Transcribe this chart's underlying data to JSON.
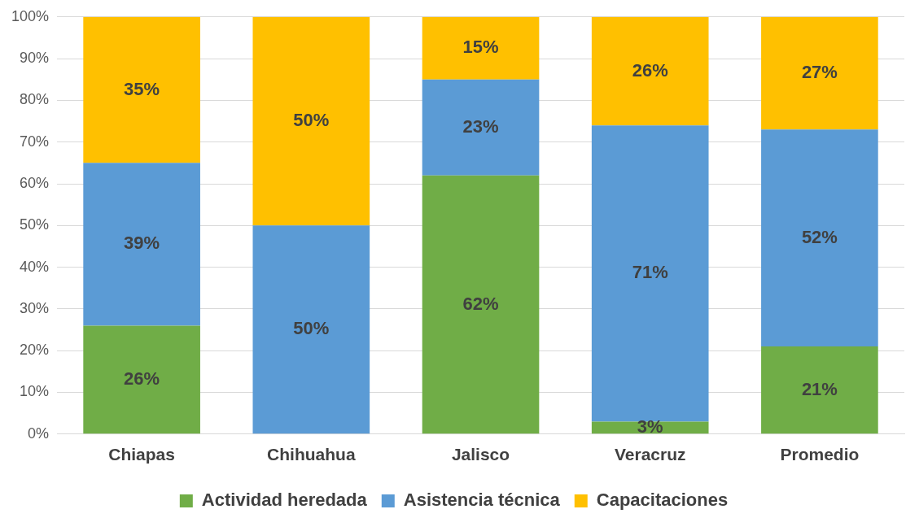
{
  "chart_data": {
    "type": "bar",
    "stacked": true,
    "categories": [
      "Chiapas",
      "Chihuahua",
      "Jalisco",
      "Veracruz",
      "Promedio"
    ],
    "series": [
      {
        "name": "Actividad heredada",
        "color": "#70ad47",
        "values": [
          26,
          0,
          62,
          3,
          21
        ],
        "value_labels": [
          "26%",
          null,
          "62%",
          "3%",
          "21%"
        ]
      },
      {
        "name": "Asistencia técnica",
        "color": "#5b9bd5",
        "values": [
          39,
          50,
          23,
          71,
          52
        ],
        "value_labels": [
          "39%",
          "50%",
          "23%",
          "71%",
          "52%"
        ]
      },
      {
        "name": "Capacitaciones",
        "color": "#ffc000",
        "values": [
          35,
          50,
          15,
          26,
          27
        ],
        "value_labels": [
          "35%",
          "50%",
          "15%",
          "26%",
          "27%"
        ]
      }
    ],
    "ylim": [
      0,
      100
    ],
    "yticks": [
      {
        "value": 0,
        "label": "0%"
      },
      {
        "value": 10,
        "label": "10%"
      },
      {
        "value": 20,
        "label": "20%"
      },
      {
        "value": 30,
        "label": "30%"
      },
      {
        "value": 40,
        "label": "40%"
      },
      {
        "value": 50,
        "label": "50%"
      },
      {
        "value": 60,
        "label": "60%"
      },
      {
        "value": 70,
        "label": "70%"
      },
      {
        "value": 80,
        "label": "80%"
      },
      {
        "value": 90,
        "label": "90%"
      },
      {
        "value": 100,
        "label": "100%"
      }
    ],
    "grid": "y",
    "legend": "bottom"
  }
}
